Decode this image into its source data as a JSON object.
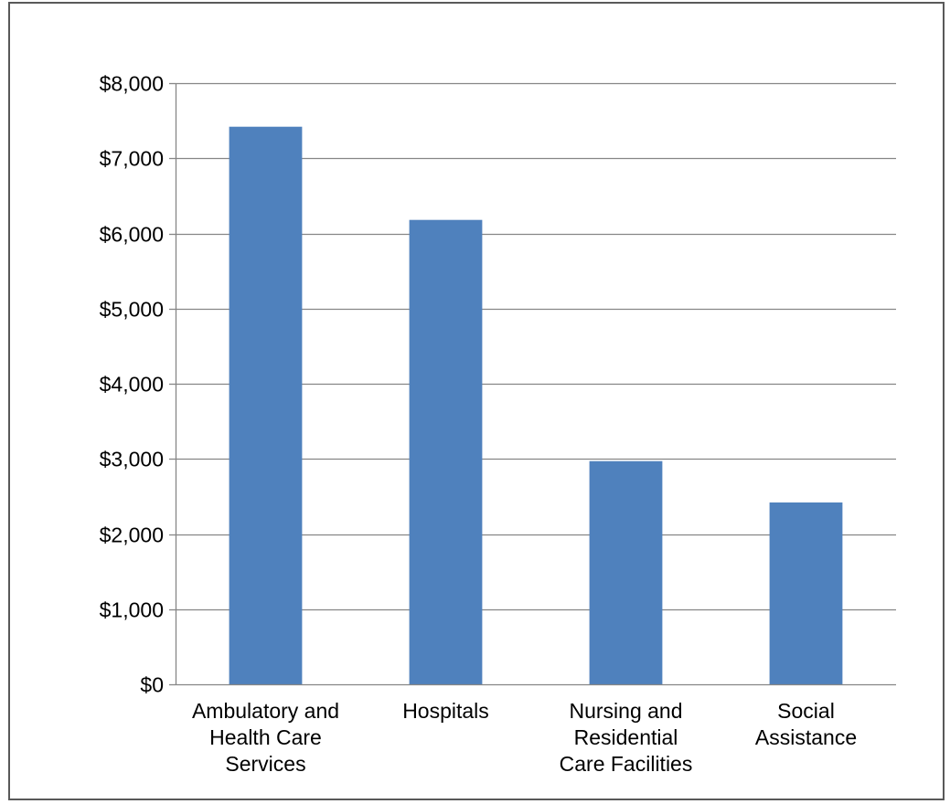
{
  "chart_data": {
    "type": "bar",
    "title": "",
    "xlabel": "",
    "ylabel": "",
    "categories": [
      "Ambulatory and Health Care Services",
      "Hospitals",
      "Nursing and Residential Care Facilities",
      "Social Assistance"
    ],
    "category_label_lines": [
      [
        "Ambulatory and",
        "Health Care",
        "Services"
      ],
      [
        "Hospitals"
      ],
      [
        "Nursing and",
        "Residential",
        "Care Facilities"
      ],
      [
        "Social",
        "Assistance"
      ]
    ],
    "values": [
      7420,
      6180,
      2970,
      2420
    ],
    "ylim": [
      0,
      8000
    ],
    "yticks": [
      0,
      1000,
      2000,
      3000,
      4000,
      5000,
      6000,
      7000,
      8000
    ],
    "ytick_labels": [
      "$0",
      "$1,000",
      "$2,000",
      "$3,000",
      "$4,000",
      "$5,000",
      "$6,000",
      "$7,000",
      "$8,000"
    ],
    "grid": true,
    "legend": "none",
    "bar_color": "#4F81BD",
    "grid_color": "#868686"
  }
}
